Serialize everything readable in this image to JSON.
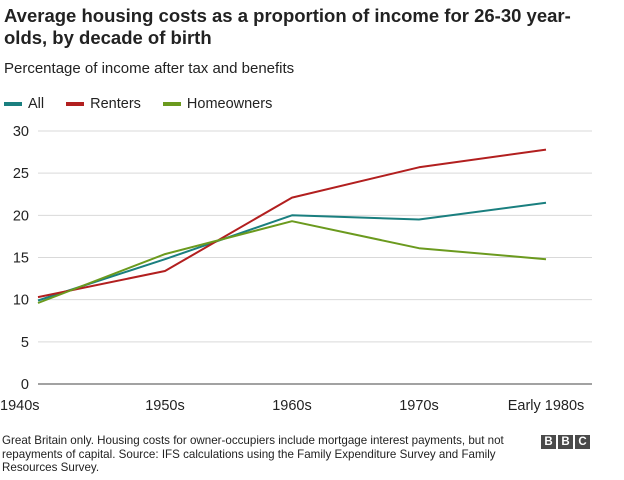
{
  "title": "Average housing costs as a proportion of income for 26-30 year-olds, by decade of birth",
  "subtitle": "Percentage of income after tax and benefits",
  "footer": "Great Britain only. Housing costs for owner-occupiers include mortgage interest payments, but not repayments of capital. Source: IFS calculations using the Family Expenditure Survey and Family Resources Survey.",
  "logo_letters": [
    "B",
    "B",
    "C"
  ],
  "chart_data": {
    "type": "line",
    "title": "Average housing costs as a proportion of income for 26-30 year-olds, by decade of birth",
    "ylabel": "Percentage of income after tax and benefits",
    "xlabel": "",
    "categories": [
      "1940s",
      "1950s",
      "1960s",
      "1970s",
      "Early 1980s"
    ],
    "ylim": [
      0,
      30
    ],
    "yticks": [
      0,
      5,
      10,
      15,
      20,
      25,
      30
    ],
    "grid": true,
    "legend_position": "top-left",
    "series": [
      {
        "name": "All",
        "color": "#1a7f7f",
        "values": [
          9.9,
          14.8,
          20.0,
          19.5,
          21.5
        ]
      },
      {
        "name": "Renters",
        "color": "#b21f1f",
        "values": [
          10.3,
          13.4,
          22.1,
          25.7,
          27.8
        ]
      },
      {
        "name": "Homeowners",
        "color": "#6b9a1e",
        "values": [
          9.6,
          15.4,
          19.3,
          16.1,
          14.8
        ]
      }
    ]
  }
}
